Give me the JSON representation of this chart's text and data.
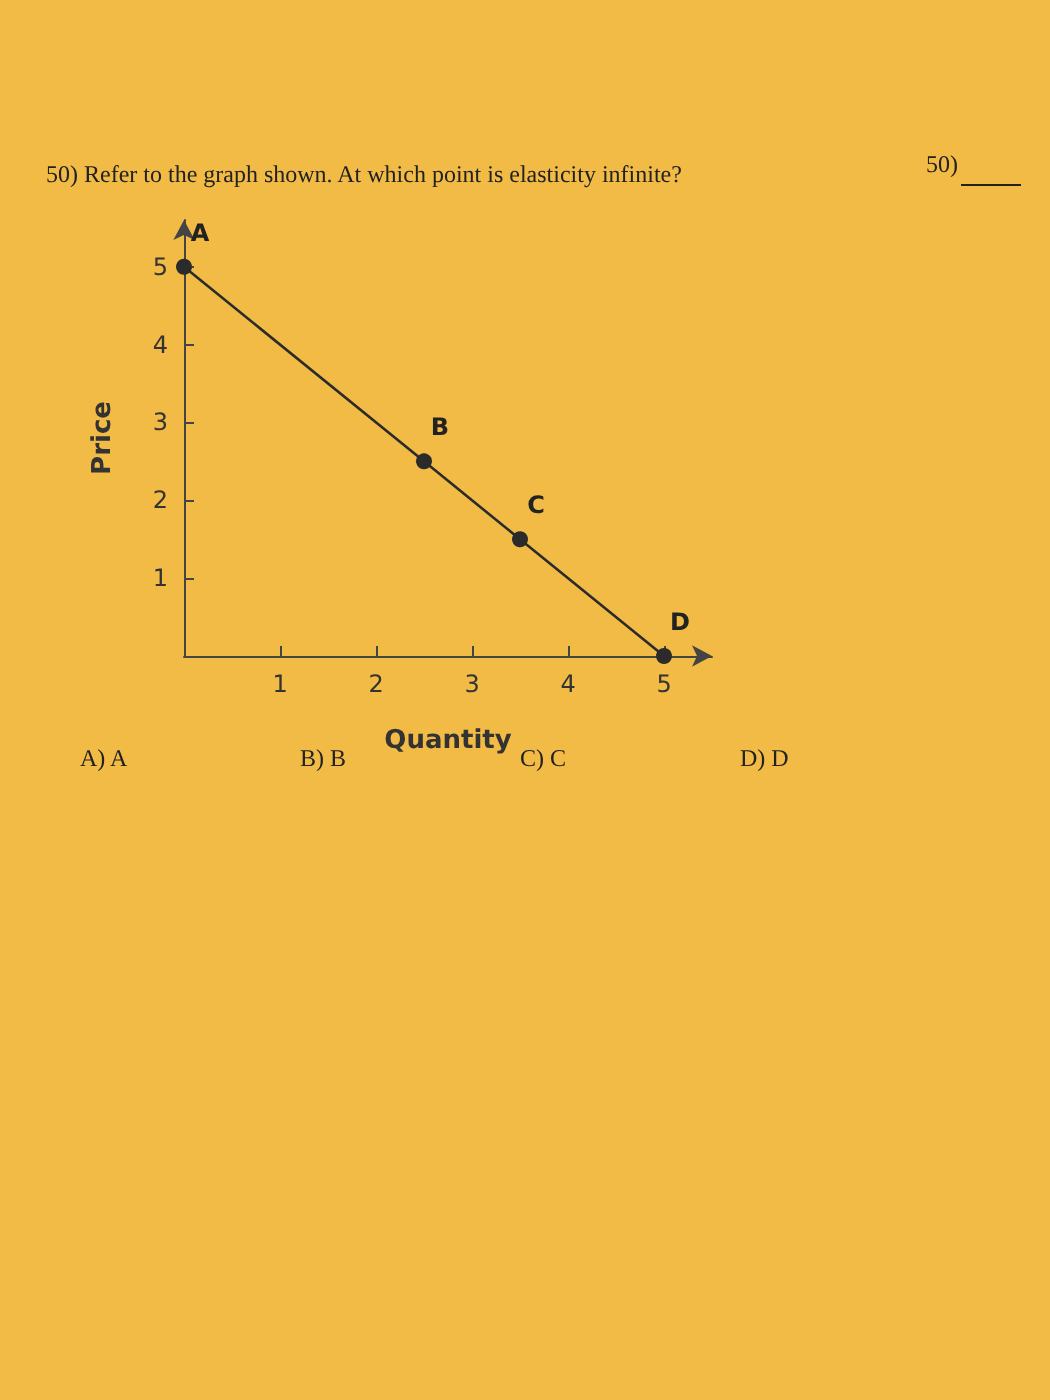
{
  "chart_data": {
    "type": "line",
    "title": "50) Refer to the graph shown. At which point is elasticity infinite?",
    "xlabel": "Quantity",
    "ylabel": "Price",
    "x": [
      0,
      2.5,
      3.5,
      5
    ],
    "series": [
      {
        "color": "#2b2b2b",
        "values": [
          5,
          2.5,
          1.5,
          0
        ],
        "value_labels": [
          "A",
          "B",
          "C",
          "D"
        ]
      }
    ],
    "xlim": [
      0,
      5.5
    ],
    "ylim": [
      0,
      5.6
    ],
    "xticks": [
      1,
      2,
      3,
      4,
      5
    ],
    "yticks": [
      1,
      2,
      3,
      4,
      5
    ],
    "marker": "circle",
    "line_style": "solid",
    "grid": false,
    "annotations": [
      "50)",
      "A) A",
      "B) B",
      "C) C",
      "D) D"
    ]
  }
}
